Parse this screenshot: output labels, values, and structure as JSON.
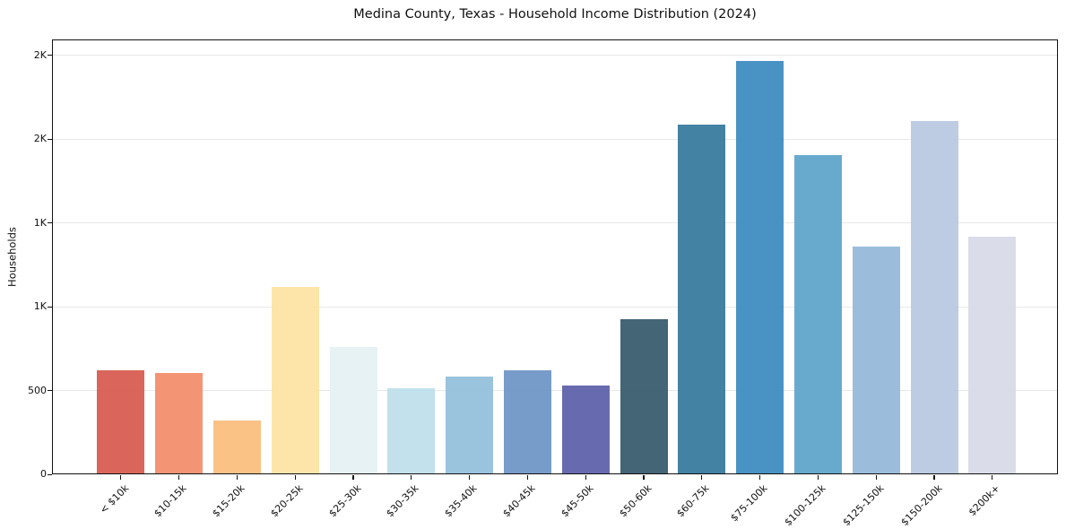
{
  "chart_data": {
    "type": "bar",
    "title": "Medina County, Texas - Household Income Distribution (2024)",
    "xlabel": "",
    "ylabel": "Households",
    "categories": [
      "< $10k",
      "$10-15k",
      "$15-20k",
      "$20-25k",
      "$25-30k",
      "$30-35k",
      "$35-40k",
      "$40-45k",
      "$45-50k",
      "$50-60k",
      "$60-75k",
      "$75-100k",
      "$100-125k",
      "$125-150k",
      "$150-200k",
      "$200k+"
    ],
    "values": [
      620,
      605,
      320,
      1120,
      760,
      515,
      585,
      620,
      530,
      925,
      2085,
      2465,
      1905,
      1360,
      2110,
      1415
    ],
    "bar_colors": [
      "#d6594f",
      "#f28c69",
      "#fbbd7d",
      "#fde3a2",
      "#e4f1f3",
      "#bddfeb",
      "#92bedb",
      "#6e95c5",
      "#5c5fa9",
      "#36596c",
      "#35789c",
      "#3b8bbf",
      "#5da4c9",
      "#93b8d8",
      "#b9c8e1",
      "#d7d9e7"
    ],
    "ylim": [
      0,
      2594
    ],
    "y_ticks": [
      {
        "value": 0,
        "label": "0"
      },
      {
        "value": 500,
        "label": "500"
      },
      {
        "value": 1000,
        "label": "1K"
      },
      {
        "value": 1500,
        "label": "1K"
      },
      {
        "value": 2000,
        "label": "2K"
      },
      {
        "value": 2500,
        "label": "2K"
      }
    ],
    "x_tick_rotation_deg": 45,
    "grid": "horizontal",
    "grid_color": "#e9e9e9",
    "spine_color": "#111111",
    "background_color": "#ffffff",
    "legend": "none"
  }
}
